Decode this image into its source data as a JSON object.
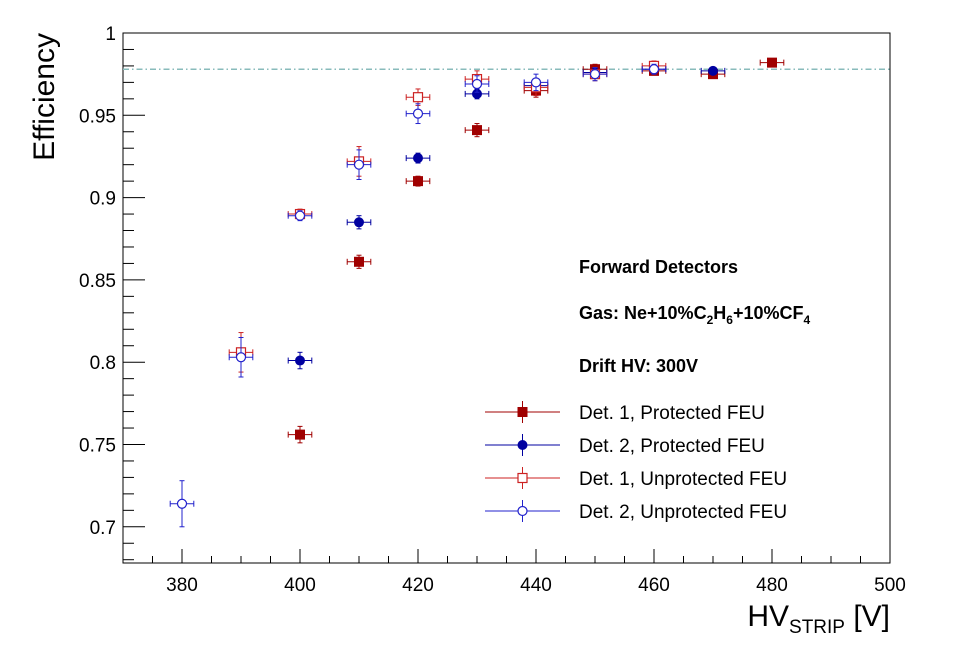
{
  "chart_data": {
    "type": "scatter",
    "xlabel_main": "HV",
    "xlabel_sub": "STRIP",
    "xlabel_unit": " [V]",
    "ylabel": "Efficiency",
    "xlim": [
      370,
      500
    ],
    "ylim": [
      0.678,
      1.0
    ],
    "x_ticks": [
      380,
      400,
      420,
      440,
      460,
      480,
      500
    ],
    "y_ticks": [
      0.7,
      0.75,
      0.8,
      0.85,
      0.9,
      0.95,
      1
    ],
    "y_tick_labels": [
      "0.7",
      "0.75",
      "0.8",
      "0.85",
      "0.9",
      "0.95",
      "1"
    ],
    "reference_line": {
      "y": 0.978,
      "style": "dash-dot",
      "color": "#88bbbb"
    },
    "annotations": {
      "title": "Forward Detectors",
      "gas": {
        "prefix": "Gas: Ne+10%C",
        "s1": "2",
        "mid1": "H",
        "s2": "6",
        "mid2": "+10%CF",
        "s3": "4"
      },
      "drift": "Drift HV: 300V"
    },
    "x_error": 2,
    "series": [
      {
        "name": "Det. 1, Protected FEU",
        "color": "#a00000",
        "marker": "square-filled",
        "points": [
          {
            "x": 400,
            "y": 0.756,
            "ey": 0.005
          },
          {
            "x": 410,
            "y": 0.861,
            "ey": 0.004
          },
          {
            "x": 420,
            "y": 0.91,
            "ey": 0.003
          },
          {
            "x": 430,
            "y": 0.941,
            "ey": 0.004
          },
          {
            "x": 440,
            "y": 0.965,
            "ey": 0.004
          },
          {
            "x": 450,
            "y": 0.978,
            "ey": 0.003
          },
          {
            "x": 460,
            "y": 0.977,
            "ey": 0.002
          },
          {
            "x": 470,
            "y": 0.975,
            "ey": 0.002
          },
          {
            "x": 480,
            "y": 0.982,
            "ey": 0.002
          }
        ]
      },
      {
        "name": "Det. 2, Protected FEU",
        "color": "#0000a0",
        "marker": "circle-filled",
        "points": [
          {
            "x": 400,
            "y": 0.801,
            "ey": 0.005
          },
          {
            "x": 410,
            "y": 0.885,
            "ey": 0.004
          },
          {
            "x": 420,
            "y": 0.924,
            "ey": 0.003
          },
          {
            "x": 430,
            "y": 0.963,
            "ey": 0.003
          },
          {
            "x": 440,
            "y": 0.968,
            "ey": 0.003
          },
          {
            "x": 450,
            "y": 0.976,
            "ey": 0.003
          },
          {
            "x": 460,
            "y": 0.978,
            "ey": 0.002
          },
          {
            "x": 470,
            "y": 0.977,
            "ey": 0.002
          }
        ]
      },
      {
        "name": "Det. 1, Unprotected FEU",
        "color": "#cc2222",
        "marker": "square-open",
        "points": [
          {
            "x": 390,
            "y": 0.806,
            "ey": 0.012
          },
          {
            "x": 400,
            "y": 0.89,
            "ey": 0.003
          },
          {
            "x": 410,
            "y": 0.922,
            "ey": 0.009
          },
          {
            "x": 420,
            "y": 0.961,
            "ey": 0.005
          },
          {
            "x": 430,
            "y": 0.972,
            "ey": 0.005
          },
          {
            "x": 440,
            "y": 0.967,
            "ey": 0.005
          },
          {
            "x": 450,
            "y": 0.975,
            "ey": 0.004
          },
          {
            "x": 460,
            "y": 0.98,
            "ey": 0.003
          }
        ]
      },
      {
        "name": "Det. 2, Unprotected FEU",
        "color": "#2222cc",
        "marker": "circle-open",
        "points": [
          {
            "x": 380,
            "y": 0.714,
            "ey": 0.014
          },
          {
            "x": 390,
            "y": 0.803,
            "ey": 0.012
          },
          {
            "x": 400,
            "y": 0.889,
            "ey": 0.003
          },
          {
            "x": 410,
            "y": 0.92,
            "ey": 0.009
          },
          {
            "x": 420,
            "y": 0.951,
            "ey": 0.006
          },
          {
            "x": 430,
            "y": 0.969,
            "ey": 0.005
          },
          {
            "x": 440,
            "y": 0.97,
            "ey": 0.005
          },
          {
            "x": 450,
            "y": 0.975,
            "ey": 0.004
          },
          {
            "x": 460,
            "y": 0.978,
            "ey": 0.003
          }
        ]
      }
    ]
  }
}
